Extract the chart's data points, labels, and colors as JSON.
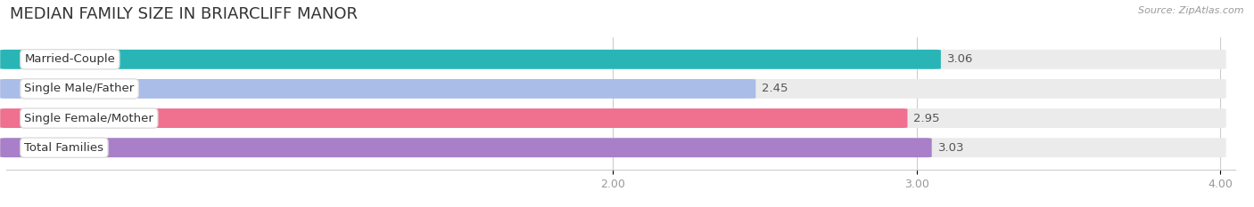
{
  "title": "MEDIAN FAMILY SIZE IN BRIARCLIFF MANOR",
  "source": "Source: ZipAtlas.com",
  "categories": [
    "Married-Couple",
    "Single Male/Father",
    "Single Female/Mother",
    "Total Families"
  ],
  "values": [
    3.06,
    2.45,
    2.95,
    3.03
  ],
  "bar_colors": [
    "#29b5b5",
    "#aabde8",
    "#f07090",
    "#a87fc8"
  ],
  "xmin": 0.0,
  "xmax": 4.0,
  "xticks": [
    2.0,
    3.0,
    4.0
  ],
  "xtick_labels": [
    "2.00",
    "3.00",
    "4.00"
  ],
  "background_color": "#ffffff",
  "bar_background_color": "#ebebeb",
  "title_fontsize": 13,
  "label_fontsize": 9.5,
  "value_fontsize": 9.5,
  "bar_height": 0.62
}
